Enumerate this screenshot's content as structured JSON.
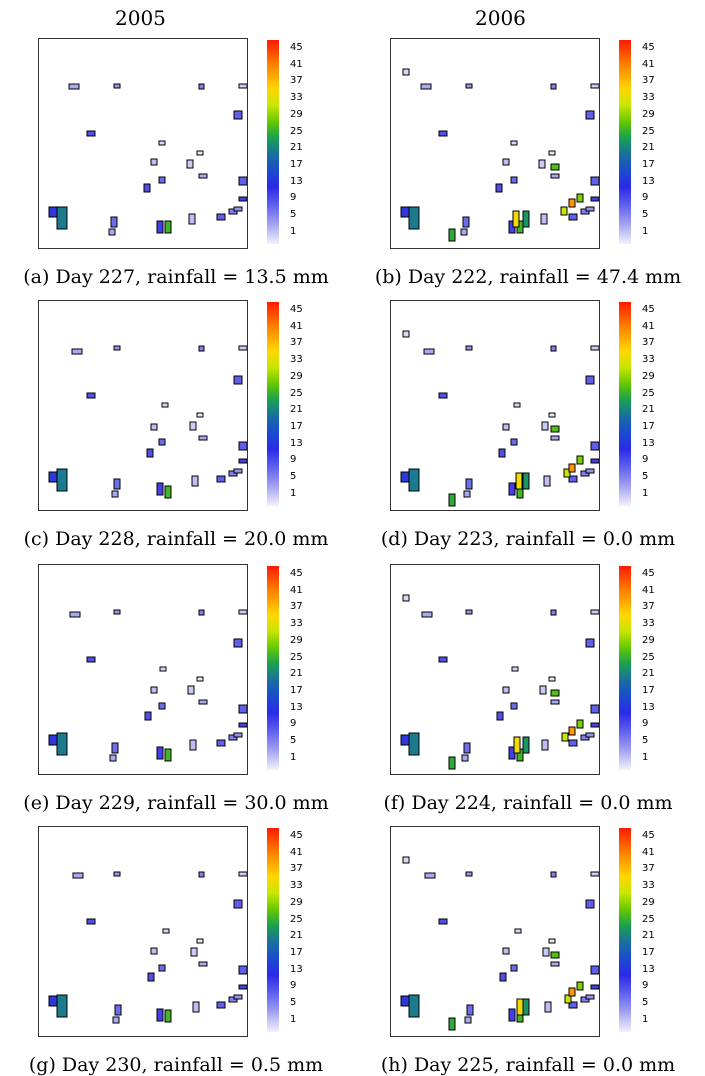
{
  "column_titles": [
    "2005",
    "2006"
  ],
  "colorbar_ticks": [
    "45",
    "41",
    "37",
    "33",
    "29",
    "25",
    "21",
    "17",
    "13",
    "9",
    "5",
    "1"
  ],
  "colors": {
    "scale_high": "#ff1a00",
    "scale_mid": "#1aa050",
    "scale_low": "#f2f2fc",
    "cell_outline": "#000000"
  },
  "chart_data": [
    {
      "type": "heatmap",
      "year": "2005",
      "day": 227,
      "rainfall_mm": 13.5,
      "caption": "(a) Day 227, rainfall = 13.5 mm",
      "scale_range": [
        1,
        45
      ]
    },
    {
      "type": "heatmap",
      "year": "2006",
      "day": 222,
      "rainfall_mm": 47.4,
      "caption": "(b) Day 222, rainfall = 47.4 mm",
      "scale_range": [
        1,
        45
      ]
    },
    {
      "type": "heatmap",
      "year": "2005",
      "day": 228,
      "rainfall_mm": 20.0,
      "caption": "(c) Day 228, rainfall = 20.0 mm",
      "scale_range": [
        1,
        45
      ]
    },
    {
      "type": "heatmap",
      "year": "2006",
      "day": 223,
      "rainfall_mm": 0.0,
      "caption": "(d) Day 223, rainfall = 0.0 mm",
      "scale_range": [
        1,
        45
      ]
    },
    {
      "type": "heatmap",
      "year": "2005",
      "day": 229,
      "rainfall_mm": 30.0,
      "caption": "(e) Day 229, rainfall = 30.0 mm",
      "scale_range": [
        1,
        45
      ]
    },
    {
      "type": "heatmap",
      "year": "2006",
      "day": 224,
      "rainfall_mm": 0.0,
      "caption": "(f) Day 224, rainfall = 0.0 mm",
      "scale_range": [
        1,
        45
      ]
    },
    {
      "type": "heatmap",
      "year": "2005",
      "day": 230,
      "rainfall_mm": 0.5,
      "caption": "(g) Day 230, rainfall = 0.5 mm",
      "scale_range": [
        1,
        45
      ]
    },
    {
      "type": "heatmap",
      "year": "2006",
      "day": 225,
      "rainfall_mm": 0.0,
      "caption": "(h) Day 225, rainfall = 0.0 mm",
      "scale_range": [
        1,
        45
      ]
    }
  ]
}
